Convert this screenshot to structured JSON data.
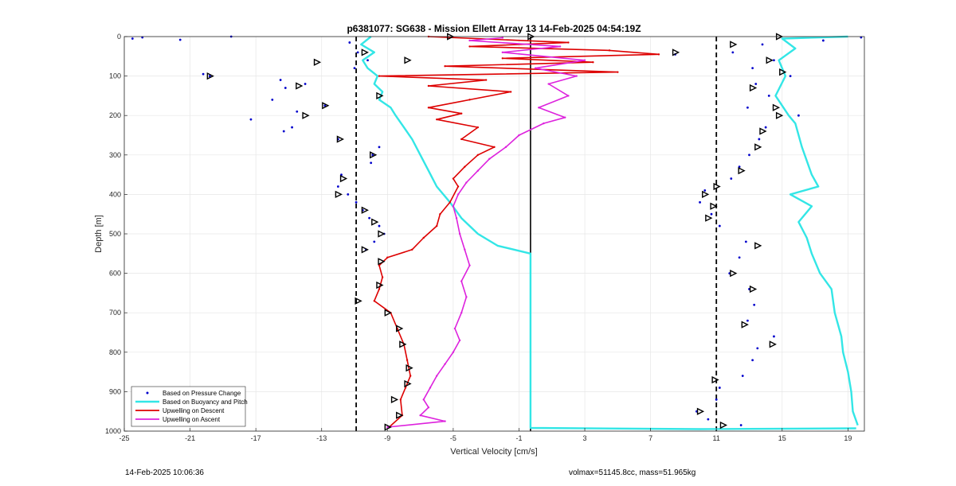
{
  "chart_data": {
    "type": "scatter",
    "title": "p6381077: SG638 - Mission Ellett Array 13 14-Feb-2025 04:54:19Z",
    "xlabel": "Vertical Velocity [cm/s]",
    "ylabel": "Depth [m]",
    "xlim": [
      -25,
      20
    ],
    "ylim": [
      0,
      1000
    ],
    "y_reversed": true,
    "grid": true,
    "xticks": [
      -25,
      -21,
      -17,
      -13,
      -9,
      -5,
      -1,
      3,
      7,
      11,
      15,
      19
    ],
    "yticks": [
      0,
      100,
      200,
      300,
      400,
      500,
      600,
      700,
      800,
      900,
      1000
    ],
    "legend_position": "bottom-left",
    "reference_lines": [
      {
        "x": -10.9,
        "style": "dashed",
        "color": "#000000"
      },
      {
        "x": 11.0,
        "style": "dashed",
        "color": "#000000"
      },
      {
        "x": -0.3,
        "style": "solid",
        "color": "#000000"
      }
    ],
    "series": [
      {
        "name": "Based on Pressure Change",
        "color": "#0000cc",
        "marker": "dot",
        "points": [
          {
            "depth": 5,
            "v": -24.5
          },
          {
            "depth": 2,
            "v": -23.9
          },
          {
            "depth": 0,
            "v": -18.5
          },
          {
            "depth": 8,
            "v": -21.6
          },
          {
            "depth": 15,
            "v": -11.3
          },
          {
            "depth": 40,
            "v": -10.8
          },
          {
            "depth": 60,
            "v": -10.2
          },
          {
            "depth": 80,
            "v": -11.0
          },
          {
            "depth": 95,
            "v": -20.2
          },
          {
            "depth": 100,
            "v": -19.8
          },
          {
            "depth": 110,
            "v": -15.5
          },
          {
            "depth": 120,
            "v": -14.0
          },
          {
            "depth": 130,
            "v": -15.2
          },
          {
            "depth": 160,
            "v": -16.0
          },
          {
            "depth": 175,
            "v": -12.8
          },
          {
            "depth": 190,
            "v": -14.5
          },
          {
            "depth": 210,
            "v": -17.3
          },
          {
            "depth": 230,
            "v": -14.8
          },
          {
            "depth": 240,
            "v": -15.3
          },
          {
            "depth": 260,
            "v": -12.0
          },
          {
            "depth": 280,
            "v": -9.5
          },
          {
            "depth": 300,
            "v": -9.9
          },
          {
            "depth": 320,
            "v": -10.0
          },
          {
            "depth": 350,
            "v": -11.8
          },
          {
            "depth": 380,
            "v": -12.0
          },
          {
            "depth": 400,
            "v": -11.4
          },
          {
            "depth": 420,
            "v": -10.9
          },
          {
            "depth": 440,
            "v": -10.5
          },
          {
            "depth": 460,
            "v": -10.1
          },
          {
            "depth": 480,
            "v": -9.5
          },
          {
            "depth": 500,
            "v": -9.2
          },
          {
            "depth": 520,
            "v": -9.8
          },
          {
            "depth": 540,
            "v": -10.3
          },
          {
            "depth": 2,
            "v": 19.8
          },
          {
            "depth": 10,
            "v": 17.5
          },
          {
            "depth": 20,
            "v": 13.8
          },
          {
            "depth": 40,
            "v": 12.0
          },
          {
            "depth": 45,
            "v": 8.5
          },
          {
            "depth": 60,
            "v": 14.5
          },
          {
            "depth": 80,
            "v": 13.2
          },
          {
            "depth": 100,
            "v": 15.5
          },
          {
            "depth": 120,
            "v": 13.4
          },
          {
            "depth": 150,
            "v": 14.2
          },
          {
            "depth": 180,
            "v": 12.9
          },
          {
            "depth": 200,
            "v": 16.0
          },
          {
            "depth": 230,
            "v": 14.0
          },
          {
            "depth": 260,
            "v": 13.6
          },
          {
            "depth": 300,
            "v": 13.0
          },
          {
            "depth": 330,
            "v": 12.4
          },
          {
            "depth": 360,
            "v": 11.9
          },
          {
            "depth": 390,
            "v": 10.3
          },
          {
            "depth": 420,
            "v": 10.0
          },
          {
            "depth": 450,
            "v": 10.7
          },
          {
            "depth": 480,
            "v": 11.2
          },
          {
            "depth": 520,
            "v": 12.8
          },
          {
            "depth": 560,
            "v": 12.4
          },
          {
            "depth": 600,
            "v": 11.8
          },
          {
            "depth": 640,
            "v": 13.0
          },
          {
            "depth": 680,
            "v": 13.3
          },
          {
            "depth": 720,
            "v": 12.9
          },
          {
            "depth": 760,
            "v": 14.5
          },
          {
            "depth": 790,
            "v": 13.5
          },
          {
            "depth": 820,
            "v": 13.2
          },
          {
            "depth": 860,
            "v": 12.6
          },
          {
            "depth": 890,
            "v": 11.2
          },
          {
            "depth": 920,
            "v": 11.0
          },
          {
            "depth": 950,
            "v": 9.8
          },
          {
            "depth": 970,
            "v": 10.5
          },
          {
            "depth": 985,
            "v": 12.5
          }
        ]
      },
      {
        "name": "Based on Buoyancy and Pitch",
        "color": "#33e6e6",
        "marker": "line",
        "segments": [
          {
            "points": [
              {
                "depth": 0,
                "v": -10.0
              },
              {
                "depth": 20,
                "v": -10.6
              },
              {
                "depth": 40,
                "v": -9.8
              },
              {
                "depth": 60,
                "v": -10.5
              },
              {
                "depth": 80,
                "v": -10.2
              },
              {
                "depth": 100,
                "v": -9.6
              },
              {
                "depth": 120,
                "v": -9.8
              },
              {
                "depth": 140,
                "v": -9.3
              },
              {
                "depth": 160,
                "v": -9.5
              },
              {
                "depth": 180,
                "v": -8.8
              },
              {
                "depth": 200,
                "v": -8.5
              },
              {
                "depth": 230,
                "v": -8.0
              },
              {
                "depth": 260,
                "v": -7.5
              },
              {
                "depth": 300,
                "v": -7.0
              },
              {
                "depth": 340,
                "v": -6.5
              },
              {
                "depth": 380,
                "v": -6.0
              },
              {
                "depth": 420,
                "v": -5.2
              },
              {
                "depth": 460,
                "v": -4.5
              },
              {
                "depth": 500,
                "v": -3.5
              },
              {
                "depth": 530,
                "v": -2.3
              },
              {
                "depth": 550,
                "v": -0.3
              },
              {
                "depth": 992,
                "v": -0.3
              },
              {
                "depth": 995,
                "v": 10.0
              },
              {
                "depth": 993,
                "v": 19.5
              }
            ]
          },
          {
            "points": [
              {
                "depth": 0,
                "v": 19.0
              },
              {
                "depth": 5,
                "v": 15.0
              },
              {
                "depth": 30,
                "v": 15.8
              },
              {
                "depth": 60,
                "v": 14.8
              },
              {
                "depth": 100,
                "v": 15.2
              },
              {
                "depth": 150,
                "v": 14.6
              },
              {
                "depth": 200,
                "v": 15.4
              },
              {
                "depth": 220,
                "v": 15.8
              },
              {
                "depth": 280,
                "v": 16.2
              },
              {
                "depth": 350,
                "v": 16.8
              },
              {
                "depth": 380,
                "v": 17.2
              },
              {
                "depth": 400,
                "v": 15.5
              },
              {
                "depth": 430,
                "v": 16.8
              },
              {
                "depth": 470,
                "v": 16.0
              },
              {
                "depth": 510,
                "v": 16.5
              },
              {
                "depth": 550,
                "v": 16.8
              },
              {
                "depth": 600,
                "v": 17.3
              },
              {
                "depth": 640,
                "v": 18.0
              },
              {
                "depth": 700,
                "v": 18.2
              },
              {
                "depth": 760,
                "v": 18.6
              },
              {
                "depth": 800,
                "v": 18.7
              },
              {
                "depth": 850,
                "v": 19.0
              },
              {
                "depth": 900,
                "v": 19.2
              },
              {
                "depth": 950,
                "v": 19.3
              },
              {
                "depth": 985,
                "v": 19.6
              }
            ]
          }
        ]
      },
      {
        "name": "Upwelling on Descent",
        "color": "#dd0000",
        "marker": "line",
        "points": [
          {
            "depth": 0,
            "v": -6.5
          },
          {
            "depth": 15,
            "v": 2.0
          },
          {
            "depth": 25,
            "v": -4.0
          },
          {
            "depth": 35,
            "v": 4.5
          },
          {
            "depth": 45,
            "v": 7.5
          },
          {
            "depth": 55,
            "v": -2.0
          },
          {
            "depth": 65,
            "v": 3.5
          },
          {
            "depth": 75,
            "v": -5.5
          },
          {
            "depth": 90,
            "v": 5.0
          },
          {
            "depth": 100,
            "v": -9.5
          },
          {
            "depth": 110,
            "v": -3.0
          },
          {
            "depth": 125,
            "v": -6.5
          },
          {
            "depth": 140,
            "v": -1.5
          },
          {
            "depth": 160,
            "v": -4.0
          },
          {
            "depth": 180,
            "v": -6.5
          },
          {
            "depth": 195,
            "v": -4.5
          },
          {
            "depth": 210,
            "v": -6.0
          },
          {
            "depth": 230,
            "v": -3.5
          },
          {
            "depth": 260,
            "v": -4.5
          },
          {
            "depth": 280,
            "v": -2.5
          },
          {
            "depth": 300,
            "v": -3.5
          },
          {
            "depth": 330,
            "v": -4.3
          },
          {
            "depth": 360,
            "v": -5.0
          },
          {
            "depth": 380,
            "v": -4.7
          },
          {
            "depth": 420,
            "v": -5.2
          },
          {
            "depth": 450,
            "v": -5.8
          },
          {
            "depth": 480,
            "v": -6.0
          },
          {
            "depth": 510,
            "v": -6.8
          },
          {
            "depth": 540,
            "v": -7.5
          },
          {
            "depth": 560,
            "v": -9.0
          },
          {
            "depth": 580,
            "v": -9.5
          },
          {
            "depth": 610,
            "v": -9.3
          },
          {
            "depth": 640,
            "v": -9.5
          },
          {
            "depth": 670,
            "v": -9.8
          },
          {
            "depth": 700,
            "v": -8.8
          },
          {
            "depth": 740,
            "v": -8.4
          },
          {
            "depth": 780,
            "v": -8.0
          },
          {
            "depth": 820,
            "v": -7.8
          },
          {
            "depth": 860,
            "v": -7.6
          },
          {
            "depth": 890,
            "v": -7.9
          },
          {
            "depth": 920,
            "v": -8.2
          },
          {
            "depth": 960,
            "v": -8.1
          },
          {
            "depth": 990,
            "v": -8.9
          }
        ]
      },
      {
        "name": "Upwelling on Ascent",
        "color": "#dd22dd",
        "marker": "line",
        "points": [
          {
            "depth": 990,
            "v": -9.0
          },
          {
            "depth": 975,
            "v": -5.5
          },
          {
            "depth": 960,
            "v": -7.0
          },
          {
            "depth": 940,
            "v": -6.5
          },
          {
            "depth": 920,
            "v": -6.8
          },
          {
            "depth": 890,
            "v": -6.4
          },
          {
            "depth": 860,
            "v": -6.0
          },
          {
            "depth": 830,
            "v": -5.5
          },
          {
            "depth": 800,
            "v": -5.0
          },
          {
            "depth": 770,
            "v": -4.6
          },
          {
            "depth": 740,
            "v": -4.9
          },
          {
            "depth": 700,
            "v": -4.5
          },
          {
            "depth": 660,
            "v": -4.2
          },
          {
            "depth": 620,
            "v": -4.5
          },
          {
            "depth": 580,
            "v": -4.0
          },
          {
            "depth": 540,
            "v": -4.3
          },
          {
            "depth": 500,
            "v": -4.6
          },
          {
            "depth": 460,
            "v": -4.8
          },
          {
            "depth": 430,
            "v": -5.0
          },
          {
            "depth": 400,
            "v": -4.7
          },
          {
            "depth": 370,
            "v": -4.2
          },
          {
            "depth": 340,
            "v": -3.5
          },
          {
            "depth": 310,
            "v": -2.8
          },
          {
            "depth": 280,
            "v": -1.8
          },
          {
            "depth": 250,
            "v": -1.0
          },
          {
            "depth": 220,
            "v": 0.5
          },
          {
            "depth": 205,
            "v": 1.8
          },
          {
            "depth": 180,
            "v": 0.2
          },
          {
            "depth": 150,
            "v": 2.0
          },
          {
            "depth": 120,
            "v": 0.8
          },
          {
            "depth": 100,
            "v": 2.5
          },
          {
            "depth": 80,
            "v": 0.0
          },
          {
            "depth": 60,
            "v": 3.0
          },
          {
            "depth": 40,
            "v": -2.0
          },
          {
            "depth": 25,
            "v": 1.5
          },
          {
            "depth": 10,
            "v": -4.0
          },
          {
            "depth": 3,
            "v": -2.0
          }
        ]
      }
    ],
    "triangle_markers": [
      {
        "depth": 0,
        "v": -0.3
      },
      {
        "depth": 0,
        "v": -5.2
      },
      {
        "depth": 0,
        "v": 14.8
      },
      {
        "depth": 40,
        "v": -10.4
      },
      {
        "depth": 60,
        "v": -7.8
      },
      {
        "depth": 65,
        "v": -13.3
      },
      {
        "depth": 100,
        "v": -19.8
      },
      {
        "depth": 125,
        "v": -14.4
      },
      {
        "depth": 150,
        "v": -9.5
      },
      {
        "depth": 175,
        "v": -12.8
      },
      {
        "depth": 200,
        "v": -14.0
      },
      {
        "depth": 260,
        "v": -11.9
      },
      {
        "depth": 300,
        "v": -9.9
      },
      {
        "depth": 360,
        "v": -11.7
      },
      {
        "depth": 400,
        "v": -12.0
      },
      {
        "depth": 440,
        "v": -10.4
      },
      {
        "depth": 470,
        "v": -9.8
      },
      {
        "depth": 500,
        "v": -9.4
      },
      {
        "depth": 540,
        "v": -10.4
      },
      {
        "depth": 570,
        "v": -9.4
      },
      {
        "depth": 630,
        "v": -9.5
      },
      {
        "depth": 670,
        "v": -10.8
      },
      {
        "depth": 700,
        "v": -9.0
      },
      {
        "depth": 740,
        "v": -8.3
      },
      {
        "depth": 780,
        "v": -8.1
      },
      {
        "depth": 840,
        "v": -7.7
      },
      {
        "depth": 880,
        "v": -7.8
      },
      {
        "depth": 920,
        "v": -8.6
      },
      {
        "depth": 960,
        "v": -8.3
      },
      {
        "depth": 990,
        "v": -9.0
      },
      {
        "depth": 20,
        "v": 12.0
      },
      {
        "depth": 40,
        "v": 8.5
      },
      {
        "depth": 60,
        "v": 14.2
      },
      {
        "depth": 90,
        "v": 15.0
      },
      {
        "depth": 130,
        "v": 13.2
      },
      {
        "depth": 180,
        "v": 14.6
      },
      {
        "depth": 200,
        "v": 14.8
      },
      {
        "depth": 240,
        "v": 13.8
      },
      {
        "depth": 280,
        "v": 13.5
      },
      {
        "depth": 340,
        "v": 12.5
      },
      {
        "depth": 380,
        "v": 11.0
      },
      {
        "depth": 400,
        "v": 10.3
      },
      {
        "depth": 430,
        "v": 10.8
      },
      {
        "depth": 460,
        "v": 10.5
      },
      {
        "depth": 530,
        "v": 13.5
      },
      {
        "depth": 600,
        "v": 12.0
      },
      {
        "depth": 640,
        "v": 13.2
      },
      {
        "depth": 730,
        "v": 12.7
      },
      {
        "depth": 780,
        "v": 14.4
      },
      {
        "depth": 870,
        "v": 10.9
      },
      {
        "depth": 950,
        "v": 10.0
      },
      {
        "depth": 985,
        "v": 11.4
      }
    ]
  },
  "footer": {
    "timestamp": "14-Feb-2025 10:06:36",
    "stats": "volmax=51145.8cc, mass=51.965kg"
  }
}
